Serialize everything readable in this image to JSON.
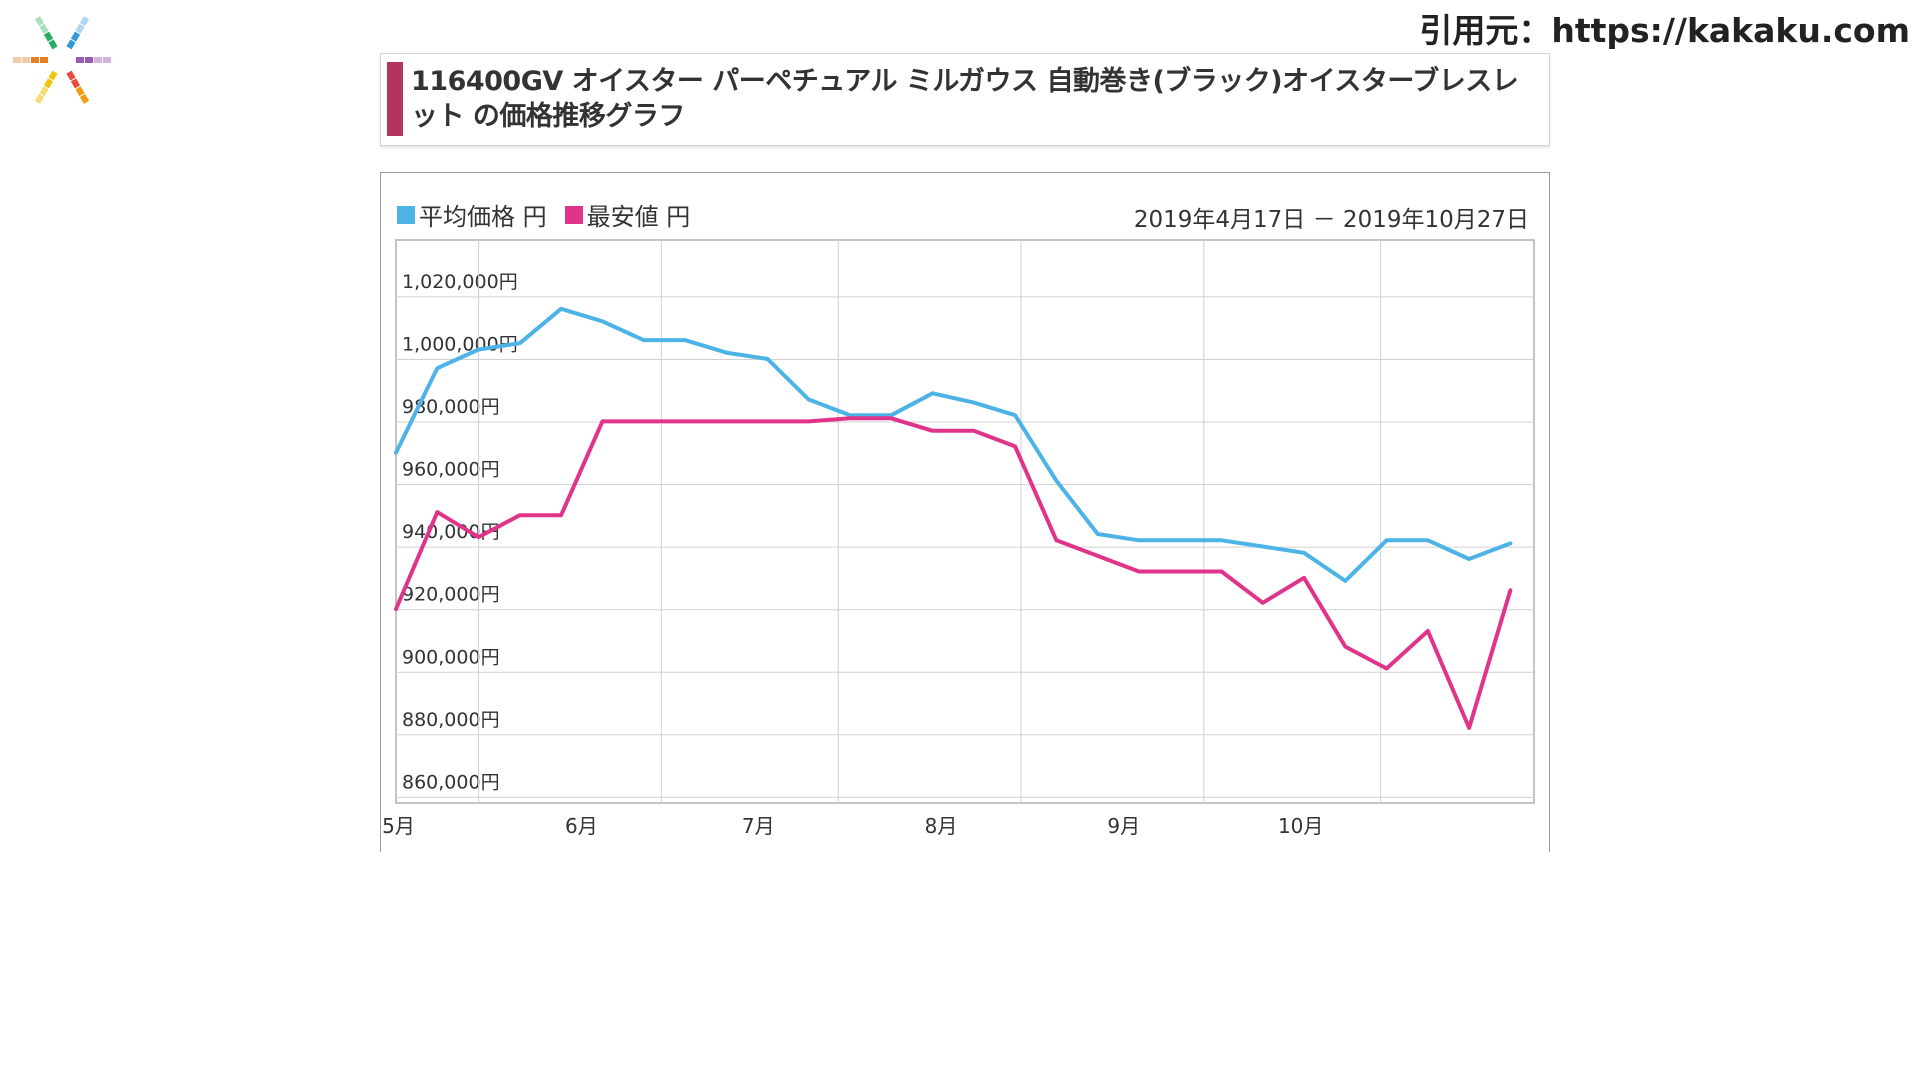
{
  "source_credit": "引用元：https://kakaku.com",
  "logo": {
    "icon": "colorful-asterisk-logo"
  },
  "title": {
    "text": "116400GV オイスター パーペチュアル ミルガウス 自動巻き(ブラック)オイスターブレスレット の価格推移グラフ",
    "bar_color": "#b2355e"
  },
  "legend": {
    "avg_label": "平均価格 円",
    "min_label": "最安値 円"
  },
  "date_range": "2019年4月17日 － 2019年10月27日",
  "chart_data": {
    "type": "line",
    "xlabel": "",
    "ylabel": "",
    "ylim": [
      855000,
      1035000
    ],
    "y_ticks": [
      1020000,
      1000000,
      980000,
      960000,
      940000,
      920000,
      900000,
      880000,
      860000
    ],
    "y_tick_labels": [
      "1,020,000円",
      "1,000,000円",
      "980,000円",
      "960,000円",
      "940,000円",
      "920,000円",
      "900,000円",
      "880,000円",
      "860,000円"
    ],
    "x_range": [
      "2019-04-17",
      "2019-10-27"
    ],
    "month_ticks": [
      {
        "label": "5月",
        "date": "2019-05-01"
      },
      {
        "label": "6月",
        "date": "2019-06-01"
      },
      {
        "label": "7月",
        "date": "2019-07-01"
      },
      {
        "label": "8月",
        "date": "2019-08-01"
      },
      {
        "label": "9月",
        "date": "2019-09-01"
      },
      {
        "label": "10月",
        "date": "2019-10-01"
      }
    ],
    "grid": true,
    "legend_position": "top-left",
    "colors": {
      "avg": "#4db3e6",
      "min": "#e0348a"
    },
    "series": [
      {
        "name": "平均価格",
        "key": "avg",
        "points": [
          [
            "2019-04-17",
            967000
          ],
          [
            "2019-04-24",
            994000
          ],
          [
            "2019-05-01",
            1000000
          ],
          [
            "2019-05-08",
            1002000
          ],
          [
            "2019-05-15",
            1013000
          ],
          [
            "2019-05-22",
            1009000
          ],
          [
            "2019-05-29",
            1003000
          ],
          [
            "2019-06-05",
            1003000
          ],
          [
            "2019-06-12",
            999000
          ],
          [
            "2019-06-19",
            997000
          ],
          [
            "2019-06-26",
            984000
          ],
          [
            "2019-07-03",
            979000
          ],
          [
            "2019-07-10",
            979000
          ],
          [
            "2019-07-17",
            986000
          ],
          [
            "2019-07-24",
            983000
          ],
          [
            "2019-07-31",
            979000
          ],
          [
            "2019-08-07",
            958000
          ],
          [
            "2019-08-14",
            941000
          ],
          [
            "2019-08-21",
            939000
          ],
          [
            "2019-08-28",
            939000
          ],
          [
            "2019-09-04",
            939000
          ],
          [
            "2019-09-11",
            937000
          ],
          [
            "2019-09-18",
            935000
          ],
          [
            "2019-09-25",
            926000
          ],
          [
            "2019-10-02",
            939000
          ],
          [
            "2019-10-09",
            939000
          ],
          [
            "2019-10-16",
            933000
          ],
          [
            "2019-10-23",
            938000
          ]
        ]
      },
      {
        "name": "最安値",
        "key": "min",
        "points": [
          [
            "2019-04-17",
            917000
          ],
          [
            "2019-04-24",
            948000
          ],
          [
            "2019-05-01",
            940000
          ],
          [
            "2019-05-08",
            947000
          ],
          [
            "2019-05-15",
            947000
          ],
          [
            "2019-05-22",
            977000
          ],
          [
            "2019-05-29",
            977000
          ],
          [
            "2019-06-05",
            977000
          ],
          [
            "2019-06-12",
            977000
          ],
          [
            "2019-06-19",
            977000
          ],
          [
            "2019-06-26",
            977000
          ],
          [
            "2019-07-03",
            978000
          ],
          [
            "2019-07-10",
            978000
          ],
          [
            "2019-07-17",
            974000
          ],
          [
            "2019-07-24",
            974000
          ],
          [
            "2019-07-31",
            969000
          ],
          [
            "2019-08-07",
            939000
          ],
          [
            "2019-08-14",
            934000
          ],
          [
            "2019-08-21",
            929000
          ],
          [
            "2019-08-28",
            929000
          ],
          [
            "2019-09-04",
            929000
          ],
          [
            "2019-09-11",
            919000
          ],
          [
            "2019-09-18",
            927000
          ],
          [
            "2019-09-25",
            905000
          ],
          [
            "2019-10-02",
            898000
          ],
          [
            "2019-10-09",
            910000
          ],
          [
            "2019-10-16",
            879000
          ],
          [
            "2019-10-23",
            923000
          ]
        ]
      }
    ]
  }
}
